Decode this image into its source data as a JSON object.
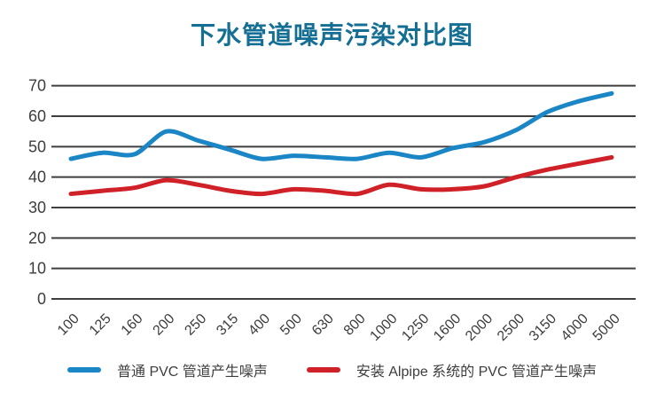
{
  "title": "下水管道噪声污染对比图",
  "colors": {
    "title": "#156f94",
    "grid": "#3f3f3f",
    "tick_label": "#3d3d3d",
    "series_blue": "#1b86c6",
    "series_red": "#cf2127",
    "background": "#ffffff"
  },
  "chart_data": {
    "type": "line",
    "title": "下水管道噪声污染对比图",
    "categories": [
      "100",
      "125",
      "160",
      "200",
      "250",
      "315",
      "400",
      "500",
      "630",
      "800",
      "1000",
      "1250",
      "1600",
      "2000",
      "2500",
      "3150",
      "4000",
      "5000"
    ],
    "series": [
      {
        "name": "普通 PVC 管道产生噪声",
        "color": "#1b86c6",
        "values": [
          46,
          48,
          47.5,
          55,
          52,
          49,
          46,
          47,
          46.5,
          46,
          48,
          46.5,
          49.5,
          51.5,
          55.5,
          61.5,
          65,
          67.5
        ]
      },
      {
        "name": "安装 Alpipe 系统的 PVC 管道产生噪声",
        "color": "#cf2127",
        "values": [
          34.5,
          35.5,
          36.5,
          39,
          37.5,
          35.5,
          34.5,
          36,
          35.5,
          34.5,
          37.5,
          36,
          36,
          37,
          40,
          42.5,
          44.5,
          46.5
        ]
      }
    ],
    "yticks": [
      0,
      10,
      20,
      30,
      40,
      50,
      60,
      70
    ],
    "ylim": [
      0,
      70
    ],
    "grid": true,
    "legend_position": "bottom",
    "xaxis_label_rotation_deg": -45
  }
}
